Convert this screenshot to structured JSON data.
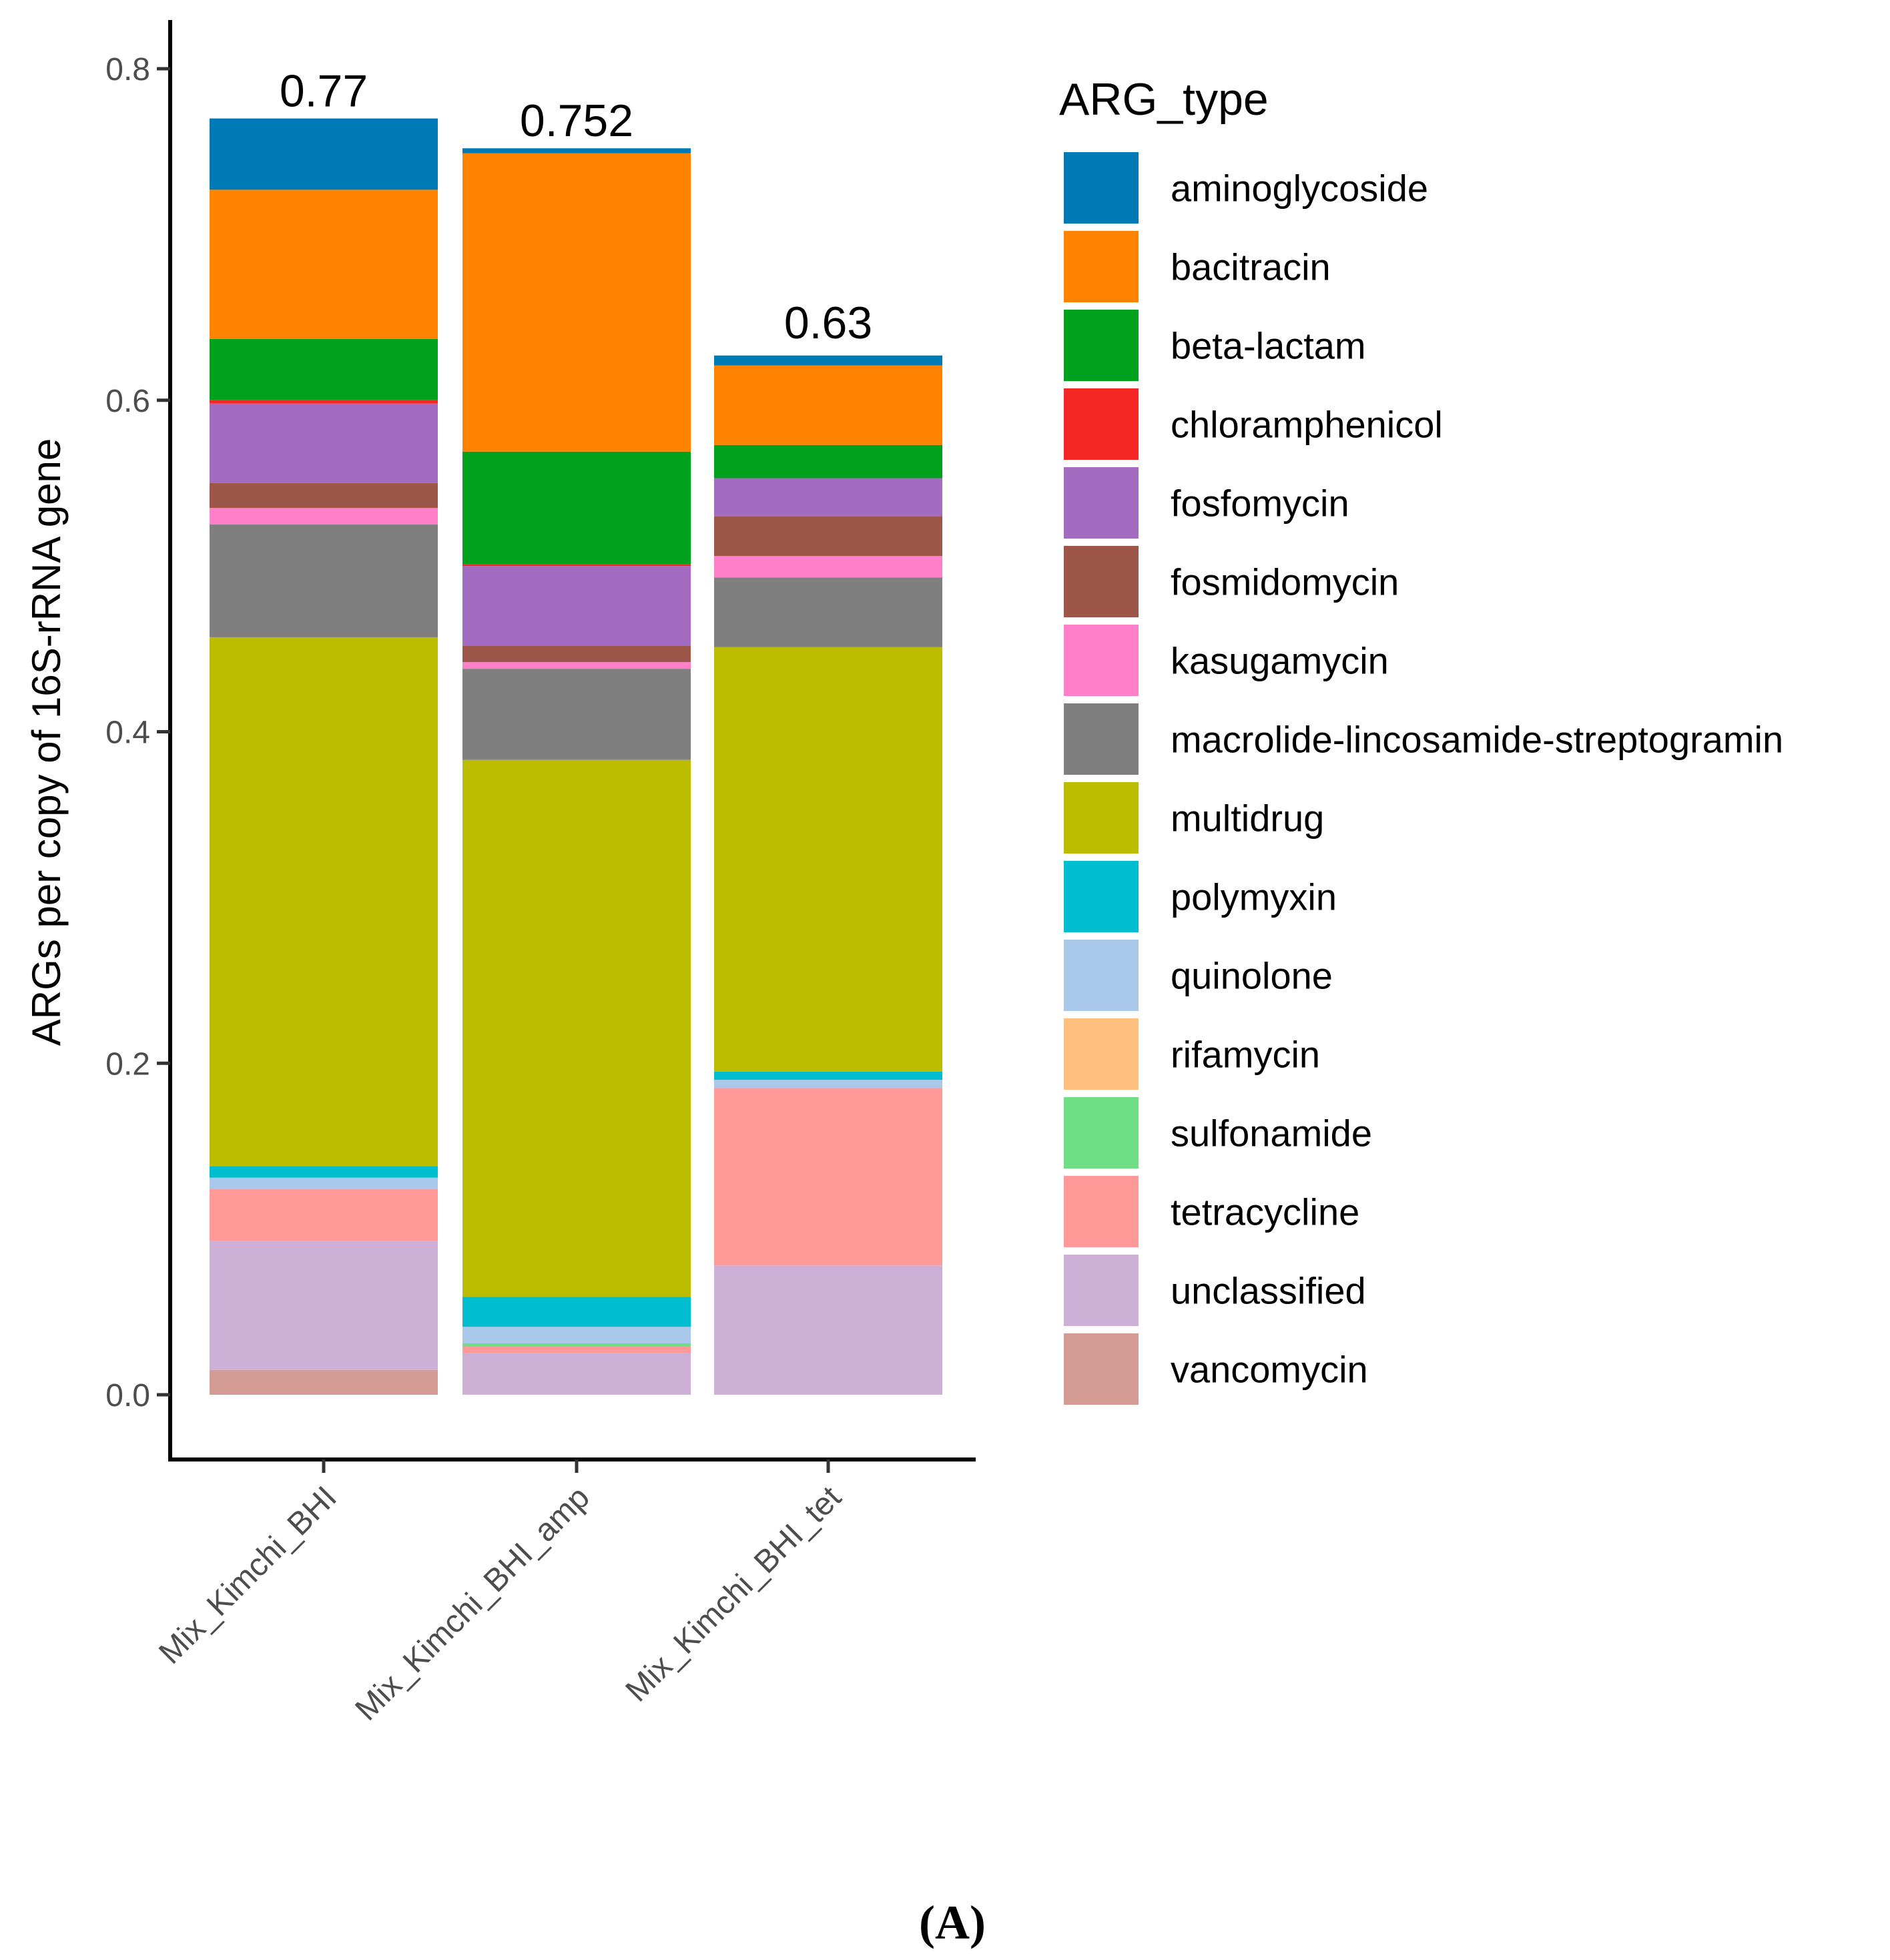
{
  "chart_data": {
    "type": "bar",
    "stacked": true,
    "title": "",
    "xlabel": "",
    "ylabel": "ARGs per copy of 16S-rRNA gene",
    "ylim": [
      -0.04,
      0.82
    ],
    "yticks": [
      0.0,
      0.2,
      0.4,
      0.6,
      0.8
    ],
    "ytick_labels": [
      "0.0",
      "0.2",
      "0.4",
      "0.6",
      "0.8"
    ],
    "categories": [
      "Mix_Kimchi_BHI",
      "Mix_Kimchi_BHI_amp",
      "Mix_Kimchi_BHI_tet"
    ],
    "totals": [
      0.77,
      0.752,
      0.63
    ],
    "total_labels": [
      "0.77",
      "0.752",
      "0.63"
    ],
    "legend_title": "ARG_type",
    "legend_position": "right",
    "panel_label": "(A)",
    "series": [
      {
        "name": "vancomycin",
        "color": "#D49A94",
        "values": [
          0.015,
          0.0,
          0.0
        ]
      },
      {
        "name": "unclassified",
        "color": "#CEB0D6",
        "values": [
          0.078,
          0.025,
          0.078
        ]
      },
      {
        "name": "tetracycline",
        "color": "#FF9A98",
        "values": [
          0.031,
          0.004,
          0.107
        ]
      },
      {
        "name": "sulfonamide",
        "color": "#6FDE85",
        "values": [
          0.0,
          0.002,
          0.0
        ]
      },
      {
        "name": "rifamycin",
        "color": "#FFBF7F",
        "values": [
          0.0,
          0.0,
          0.0
        ]
      },
      {
        "name": "quinolone",
        "color": "#AAC8EA",
        "values": [
          0.007,
          0.01,
          0.005
        ]
      },
      {
        "name": "polymyxin",
        "color": "#00BED0",
        "values": [
          0.007,
          0.018,
          0.005
        ]
      },
      {
        "name": "multidrug",
        "color": "#BCBD00",
        "values": [
          0.319,
          0.324,
          0.256
        ]
      },
      {
        "name": "macrolide-lincosamide-streptogramin",
        "color": "#7F7F7F",
        "values": [
          0.068,
          0.055,
          0.042
        ]
      },
      {
        "name": "kasugamycin",
        "color": "#FF7FC9",
        "values": [
          0.01,
          0.004,
          0.013
        ]
      },
      {
        "name": "fosmidomycin",
        "color": "#9C574A",
        "values": [
          0.015,
          0.01,
          0.024
        ]
      },
      {
        "name": "fosfomycin",
        "color": "#A46CC0",
        "values": [
          0.048,
          0.048,
          0.023
        ]
      },
      {
        "name": "chloramphenicol",
        "color": "#F52725",
        "values": [
          0.002,
          0.001,
          0.0
        ]
      },
      {
        "name": "beta-lactam",
        "color": "#00A11D",
        "values": [
          0.037,
          0.068,
          0.02
        ]
      },
      {
        "name": "bacitracin",
        "color": "#FF8200",
        "values": [
          0.09,
          0.18,
          0.048
        ]
      },
      {
        "name": "aminoglycoside",
        "color": "#007AB6",
        "values": [
          0.043,
          0.003,
          0.006
        ]
      }
    ],
    "legend_order": [
      "aminoglycoside",
      "bacitracin",
      "beta-lactam",
      "chloramphenicol",
      "fosfomycin",
      "fosmidomycin",
      "kasugamycin",
      "macrolide-lincosamide-streptogramin",
      "multidrug",
      "polymyxin",
      "quinolone",
      "rifamycin",
      "sulfonamide",
      "tetracycline",
      "unclassified",
      "vancomycin"
    ]
  }
}
